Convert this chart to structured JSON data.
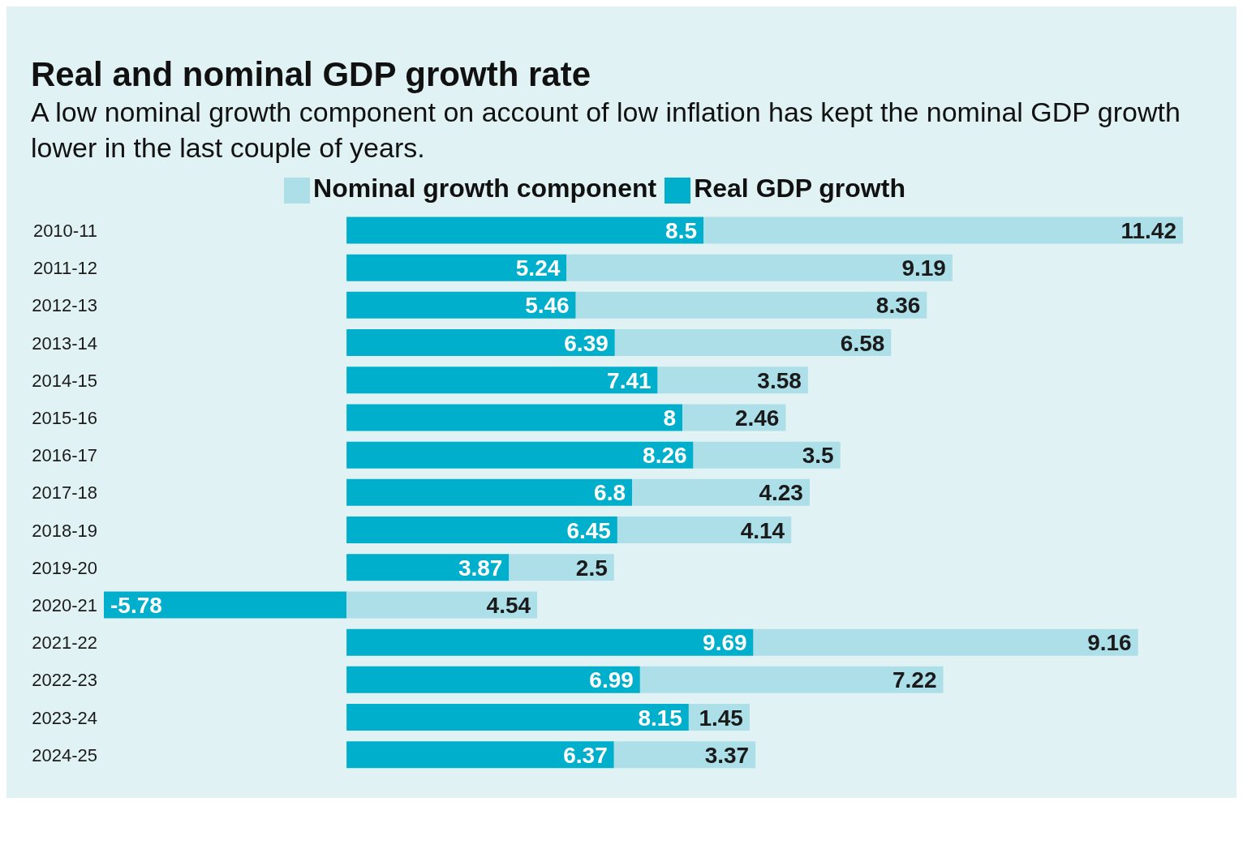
{
  "chart_data": {
    "type": "bar",
    "title": "Real and nominal GDP growth rate",
    "subtitle": "A low nominal growth component on account of low inflation has kept the nominal GDP growth lower in the last couple of years.",
    "categories": [
      "2010-11",
      "2011-12",
      "2012-13",
      "2013-14",
      "2014-15",
      "2015-16",
      "2016-17",
      "2017-18",
      "2018-19",
      "2019-20",
      "2020-21",
      "2021-22",
      "2022-23",
      "2023-24",
      "2024-25"
    ],
    "series": [
      {
        "name": "Real GDP growth",
        "color": "#00afcb",
        "values": [
          8.5,
          5.24,
          5.46,
          6.39,
          7.41,
          8,
          8.26,
          6.8,
          6.45,
          3.87,
          -5.78,
          9.69,
          6.99,
          8.15,
          6.37
        ]
      },
      {
        "name": "Nominal growth component",
        "color": "#addfe9",
        "values": [
          11.42,
          9.19,
          8.36,
          6.58,
          3.58,
          2.46,
          3.5,
          4.23,
          4.14,
          2.5,
          4.54,
          9.16,
          7.22,
          1.45,
          3.37
        ]
      }
    ],
    "stacked": true,
    "orientation": "horizontal",
    "data_labels": true,
    "legend": "top"
  }
}
